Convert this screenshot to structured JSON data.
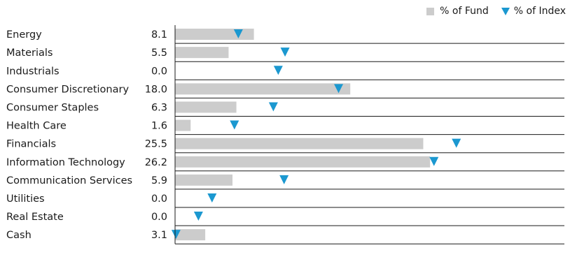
{
  "legend": {
    "fund_label": "% of Fund",
    "index_label": "% of Index"
  },
  "colors": {
    "fund": "#cccccc",
    "index": "#1b98d0",
    "grid": "#1a1a1a"
  },
  "chart_data": {
    "type": "bar",
    "orientation": "horizontal",
    "categories": [
      "Energy",
      "Materials",
      "Industrials",
      "Consumer Discretionary",
      "Consumer Staples",
      "Health Care",
      "Financials",
      "Information Technology",
      "Communication Services",
      "Utilities",
      "Real Estate",
      "Cash"
    ],
    "fund_value_labels": [
      "8.1",
      "5.5",
      "0.0",
      "18.0",
      "6.3",
      "1.6",
      "25.5",
      "26.2",
      "5.9",
      "0.0",
      "0.0",
      "3.1"
    ],
    "series": [
      {
        "name": "% of Fund",
        "type": "bar",
        "values": [
          8.1,
          5.5,
          0.0,
          18.0,
          6.3,
          1.6,
          25.5,
          26.2,
          5.9,
          0.0,
          0.0,
          3.1
        ]
      },
      {
        "name": "% of Index",
        "type": "marker",
        "values": [
          6.5,
          11.3,
          10.6,
          16.8,
          10.1,
          6.1,
          28.9,
          26.6,
          11.2,
          3.8,
          2.4,
          0.1
        ]
      }
    ],
    "xlim": [
      0,
      40
    ],
    "xticks": [
      "0",
      "10",
      "20",
      "30",
      "40"
    ],
    "grid": "horizontal row separators",
    "legend_position": "top-right"
  }
}
